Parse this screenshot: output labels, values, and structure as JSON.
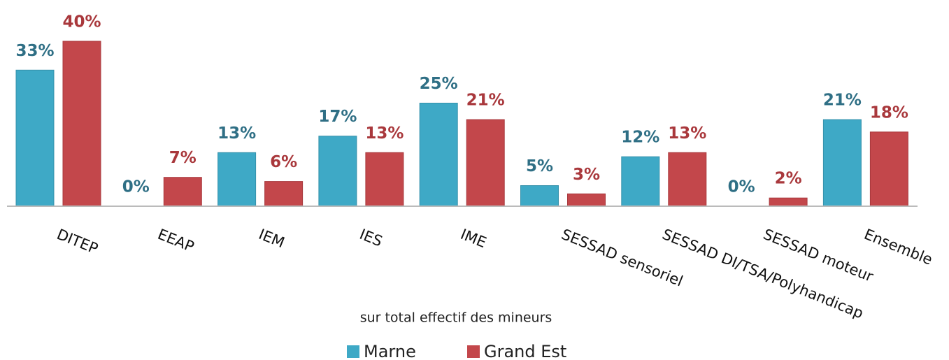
{
  "chart_data": {
    "type": "bar",
    "xlabel": "sur total effectif des mineurs",
    "categories": [
      "DITEP",
      "EEAP",
      "IEM",
      "IES",
      "IME",
      "SESSAD sensoriel",
      "SESSAD DI/TSA/Polyhandicap",
      "SESSAD moteur",
      "Ensemble"
    ],
    "series": [
      {
        "name": "Marne",
        "color": "#3ea9c6",
        "values": [
          33,
          0,
          13,
          17,
          25,
          5,
          12,
          0,
          21
        ],
        "value_labels": [
          "33%",
          "0%",
          "13%",
          "17%",
          "25%",
          "5%",
          "12%",
          "0%",
          "21%"
        ]
      },
      {
        "name": "Grand Est",
        "color": "#c3474b",
        "values": [
          40,
          7,
          6,
          13,
          21,
          3,
          13,
          2,
          18
        ],
        "value_labels": [
          "40%",
          "7%",
          "6%",
          "13%",
          "21%",
          "3%",
          "13%",
          "2%",
          "18%"
        ]
      }
    ],
    "legend": "bottom"
  }
}
